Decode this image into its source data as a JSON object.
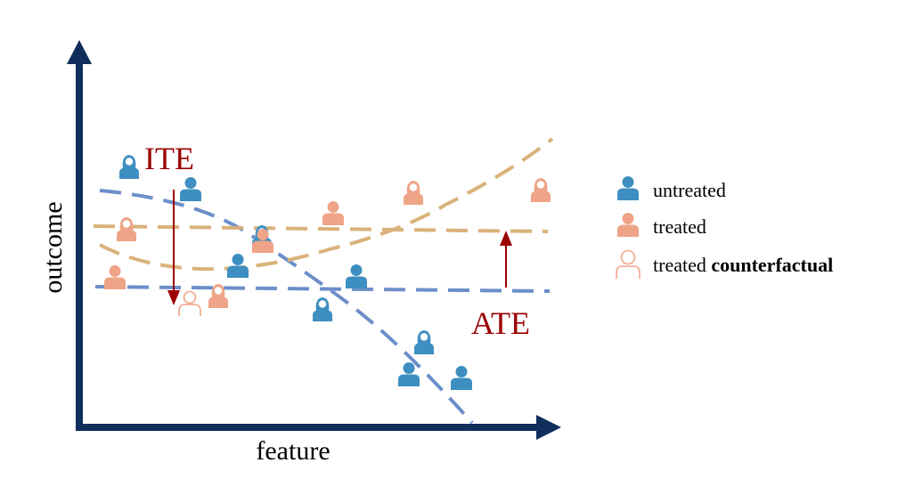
{
  "axes": {
    "x_label": "feature",
    "y_label": "outcome"
  },
  "annotations": {
    "ite": "ITE",
    "ate": "ATE"
  },
  "legend": {
    "untreated": "untreated",
    "treated": "treated",
    "counterfactual_prefix": "treated ",
    "counterfactual_bold": "counterfactual"
  },
  "colors": {
    "axis": "#0f2e5c",
    "untreated": "#3e8fc1",
    "treated": "#f0a487",
    "curve_untreated": "#6c8fc9",
    "curve_treated": "#d9b27a",
    "annotation": "#9b0000"
  },
  "icons": {
    "untreated": "person-male-icon",
    "untreated_female": "person-female-icon",
    "treated": "person-male-icon",
    "treated_female": "person-female-icon",
    "counterfactual": "person-outline-icon"
  }
}
